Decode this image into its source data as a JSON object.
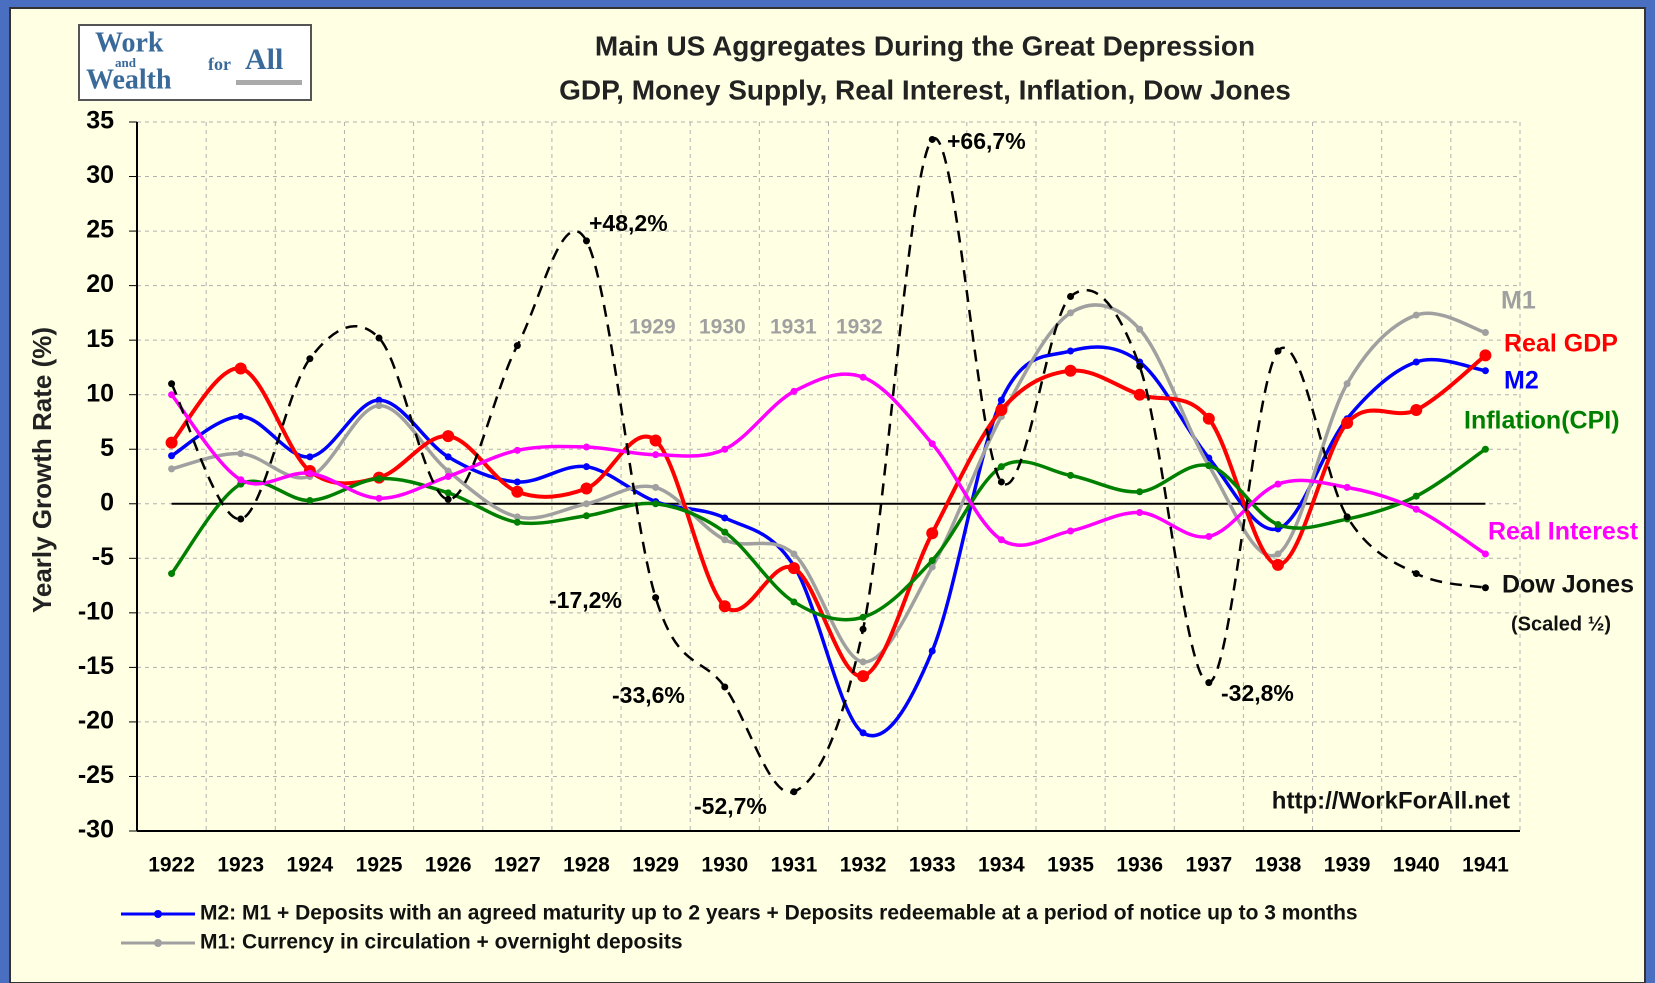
{
  "chart_data": {
    "type": "line",
    "title": "Main US Aggregates During the Great Depression",
    "subtitle": "GDP, Money Supply, Real Interest, Inflation, Dow Jones",
    "y_label": "Yearly Growth Rate (%)",
    "source": "http://WorkForAll.net",
    "logo": [
      "Work",
      "and",
      "Wealth",
      "for",
      "All"
    ],
    "categories": [
      "1922",
      "1923",
      "1924",
      "1925",
      "1926",
      "1927",
      "1928",
      "1929",
      "1930",
      "1931",
      "1932",
      "1933",
      "1934",
      "1935",
      "1936",
      "1937",
      "1938",
      "1939",
      "1940",
      "1941"
    ],
    "series": [
      {
        "name": "M2",
        "color": "#0000ff",
        "description": "M2: M1 + Deposits with an agreed maturity up to 2 years + Deposits redeemable at a period of notice up to 3 months",
        "values": [
          4.4,
          8,
          4.3,
          9.5,
          4.3,
          2,
          3.4,
          0.2,
          -1.3,
          -5.7,
          -21,
          -13.5,
          9.5,
          14,
          13,
          4.2,
          -2.3,
          7.8,
          13,
          12.2
        ]
      },
      {
        "name": "M1",
        "color": "#a0a0a0",
        "description": "M1: Currency in circulation + overnight deposits",
        "values": [
          3.2,
          4.6,
          2.5,
          9,
          3,
          -1.2,
          0,
          1.5,
          -3.3,
          -4.6,
          -14.5,
          -5.8,
          8,
          17.5,
          16,
          3.5,
          -4.6,
          11,
          17.3,
          15.7
        ]
      },
      {
        "name": "Real GDP",
        "color": "#ff0000",
        "values": [
          5.6,
          12.4,
          3,
          2.4,
          6.2,
          1.1,
          1.4,
          5.8,
          -9.4,
          -5.9,
          -15.8,
          -2.7,
          8.6,
          12.2,
          10,
          7.8,
          -5.6,
          7.4,
          8.6,
          13.6
        ]
      },
      {
        "name": "Inflation(CPI)",
        "color": "#008000",
        "values": [
          -6.4,
          1.8,
          0.3,
          2.3,
          1,
          -1.7,
          -1.1,
          0,
          -2.6,
          -9,
          -10.4,
          -5.2,
          3.4,
          2.6,
          1.1,
          3.5,
          -1.9,
          -1.4,
          0.7,
          5
        ]
      },
      {
        "name": "Real Interest",
        "color": "#ff00ff",
        "values": [
          10,
          2.2,
          2.8,
          0.5,
          2.5,
          4.9,
          5.2,
          4.5,
          5,
          10.3,
          11.6,
          5.5,
          -3.3,
          -2.5,
          -0.8,
          -3,
          1.8,
          1.5,
          -0.5,
          -4.6
        ]
      },
      {
        "name": "Dow Jones",
        "color": "#000000",
        "note": "(Scaled ½)",
        "dashed": true,
        "values": [
          11,
          -1.4,
          13.3,
          15.2,
          0.4,
          14.5,
          24.1,
          -8.6,
          -16.8,
          -26.4,
          -11.5,
          33.4,
          2,
          19,
          12.6,
          -16.4,
          14,
          -1.2,
          -6.4,
          -7.7
        ]
      }
    ],
    "annotations": [
      "+48,2%",
      "-17,2%",
      "-33,6%",
      "-52,7%",
      "+66,7%",
      "-32,8%",
      "1929",
      "1930",
      "1931",
      "1932"
    ],
    "ylim": [
      -30,
      35
    ],
    "yticks": [
      -30,
      -25,
      -20,
      -15,
      -10,
      -5,
      0,
      5,
      10,
      15,
      20,
      25,
      30,
      35
    ],
    "grid": true
  }
}
